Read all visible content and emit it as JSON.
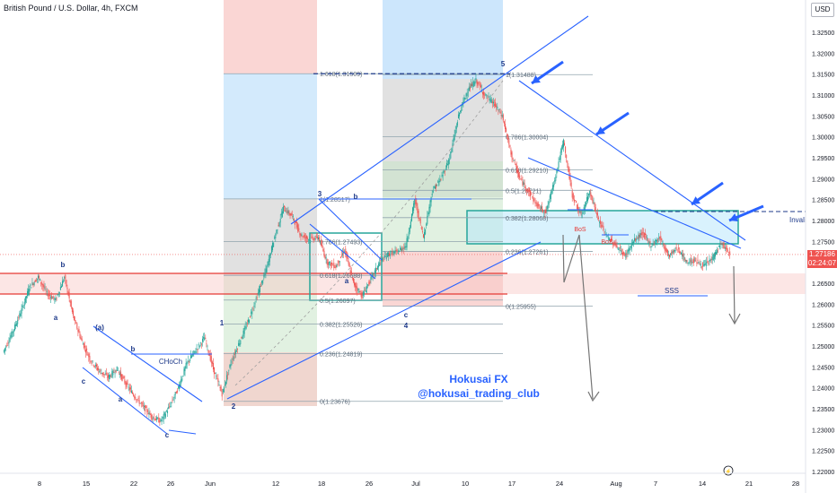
{
  "header": {
    "title": "British Pound / U.S. Dollar, 4h, FXCM",
    "currency_button": "USD"
  },
  "price_tag": {
    "price": "1.27186",
    "countdown": "02:24:07"
  },
  "watermark": {
    "line1": "Hokusai FX",
    "line2": "@hokusai_trading_club"
  },
  "chart_data": {
    "type": "candlestick",
    "symbol": "GBPUSD",
    "timeframe": "4h",
    "ylim": [
      1.215,
      1.33
    ],
    "y_ticks": [
      "1.32500",
      "1.32000",
      "1.31500",
      "1.31000",
      "1.30500",
      "1.30000",
      "1.29500",
      "1.29000",
      "1.28500",
      "1.28000",
      "1.27500",
      "1.27000",
      "1.26500",
      "1.26000",
      "1.25500",
      "1.25000",
      "1.24500",
      "1.24000",
      "1.23500",
      "1.23000",
      "1.22500",
      "1.22000"
    ],
    "x_ticks": [
      "8",
      "15",
      "22",
      "26",
      "Jun",
      "12",
      "18",
      "26",
      "Jul",
      "10",
      "17",
      "24",
      "Aug",
      "7",
      "14",
      "21",
      "28"
    ],
    "close_path": [
      [
        0,
        1.2485
      ],
      [
        1,
        1.253
      ],
      [
        2,
        1.258
      ],
      [
        3,
        1.264
      ],
      [
        4,
        1.2665
      ],
      [
        5,
        1.2625
      ],
      [
        6,
        1.261
      ],
      [
        7,
        1.2665
      ],
      [
        8,
        1.257
      ],
      [
        9,
        1.251
      ],
      [
        10,
        1.2465
      ],
      [
        11,
        1.244
      ],
      [
        12,
        1.2425
      ],
      [
        13,
        1.2445
      ],
      [
        14,
        1.241
      ],
      [
        15,
        1.238
      ],
      [
        16,
        1.2355
      ],
      [
        17,
        1.233
      ],
      [
        18,
        1.232
      ],
      [
        19,
        1.2355
      ],
      [
        20,
        1.24
      ],
      [
        21,
        1.246
      ],
      [
        22,
        1.249
      ],
      [
        23,
        1.252
      ],
      [
        24,
        1.2445
      ],
      [
        25,
        1.2385
      ],
      [
        26,
        1.246
      ],
      [
        27,
        1.251
      ],
      [
        28,
        1.256
      ],
      [
        29,
        1.262
      ],
      [
        30,
        1.268
      ],
      [
        31,
        1.276
      ],
      [
        32,
        1.283
      ],
      [
        33,
        1.281
      ],
      [
        34,
        1.2765
      ],
      [
        35,
        1.2755
      ],
      [
        36,
        1.276
      ],
      [
        37,
        1.27
      ],
      [
        38,
        1.269
      ],
      [
        39,
        1.273
      ],
      [
        40,
        1.265
      ],
      [
        41,
        1.262
      ],
      [
        42,
        1.266
      ],
      [
        43,
        1.27
      ],
      [
        44,
        1.272
      ],
      [
        45,
        1.2725
      ],
      [
        46,
        1.274
      ],
      [
        47,
        1.285
      ],
      [
        48,
        1.276
      ],
      [
        49,
        1.287
      ],
      [
        50,
        1.29
      ],
      [
        51,
        1.295
      ],
      [
        52,
        1.305
      ],
      [
        53,
        1.311
      ],
      [
        54,
        1.3135
      ],
      [
        55,
        1.31
      ],
      [
        56,
        1.308
      ],
      [
        57,
        1.305
      ],
      [
        58,
        1.296
      ],
      [
        59,
        1.29
      ],
      [
        60,
        1.287
      ],
      [
        61,
        1.2835
      ],
      [
        62,
        1.282
      ],
      [
        63,
        1.29
      ],
      [
        64,
        1.299
      ],
      [
        65,
        1.286
      ],
      [
        66,
        1.281
      ],
      [
        67,
        1.287
      ],
      [
        68,
        1.28
      ],
      [
        69,
        1.276
      ],
      [
        70,
        1.274
      ],
      [
        71,
        1.2715
      ],
      [
        72,
        1.275
      ],
      [
        73,
        1.277
      ],
      [
        74,
        1.274
      ],
      [
        75,
        1.276
      ],
      [
        76,
        1.2715
      ],
      [
        77,
        1.2735
      ],
      [
        78,
        1.27
      ],
      [
        79,
        1.2705
      ],
      [
        80,
        1.269
      ],
      [
        81,
        1.271
      ],
      [
        82,
        1.2745
      ],
      [
        83,
        1.2719
      ]
    ],
    "fibonacci_left": [
      {
        "label": "1.618(1.31509)",
        "value": 1.31509
      },
      {
        "label": "1(1.28517)",
        "value": 1.28517
      },
      {
        "label": "0.786(1.27493)",
        "value": 1.27493
      },
      {
        "label": "0.618(1.26688)",
        "value": 1.26688
      },
      {
        "label": "0.5(1.26097)",
        "value": 1.26097
      },
      {
        "label": "0.382(1.25526)",
        "value": 1.25526
      },
      {
        "label": "0.236(1.24819)",
        "value": 1.24819
      },
      {
        "label": "0(1.23676)",
        "value": 1.23676
      }
    ],
    "fibonacci_right": [
      {
        "label": "1(1.31488)",
        "value": 1.31488
      },
      {
        "label": "0.786(1.30004)",
        "value": 1.30004
      },
      {
        "label": "0.618(1.29210)",
        "value": 1.2921
      },
      {
        "label": "0.5(1.28721)",
        "value": 1.28721
      },
      {
        "label": "0.382(1.28068)",
        "value": 1.28068
      },
      {
        "label": "0.236(1.27261)",
        "value": 1.27261
      },
      {
        "label": "0(1.25955)",
        "value": 1.25955
      }
    ],
    "wave_labels": [
      "b",
      "a",
      "c",
      "(a)",
      "b",
      "a",
      "c",
      "1",
      "2",
      "3",
      "b",
      "a",
      "c",
      "4",
      "5"
    ],
    "annotations": [
      "CHoCh",
      "BoS",
      "BoS",
      "SSS",
      "Invalid"
    ],
    "last_price": 1.27186
  }
}
